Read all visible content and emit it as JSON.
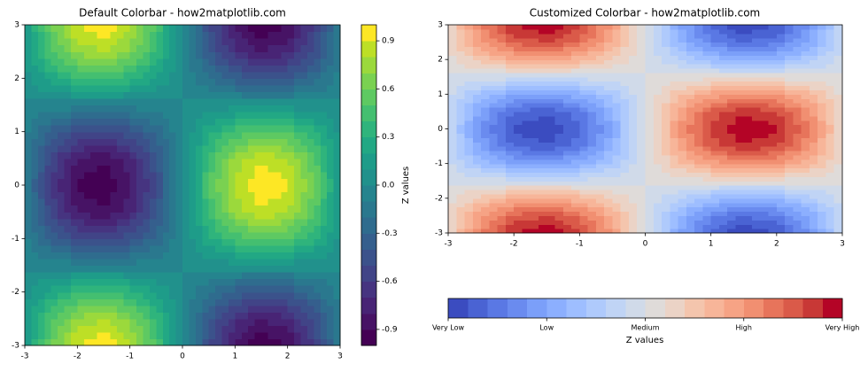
{
  "chart_data": [
    {
      "type": "contourf",
      "title": "Default Colorbar - how2matplotlib.com",
      "x": [
        -3,
        -2.5,
        -2,
        -1.5,
        -1,
        -0.5,
        0,
        0.5,
        1,
        1.5,
        2,
        2.5,
        3
      ],
      "y": [
        -3,
        -2.5,
        -2,
        -1.5,
        -1,
        -0.5,
        0,
        0.5,
        1,
        1.5,
        2,
        2.5,
        3
      ],
      "z": [
        [
          0.14,
          0.59,
          0.9,
          0.99,
          0.83,
          0.47,
          0,
          -0.47,
          -0.83,
          -0.99,
          -0.9,
          -0.59,
          -0.14
        ],
        [
          0.11,
          0.48,
          0.73,
          0.8,
          0.67,
          0.38,
          0,
          -0.38,
          -0.67,
          -0.8,
          -0.73,
          -0.48,
          -0.11
        ],
        [
          0.06,
          0.25,
          0.38,
          0.42,
          0.35,
          0.2,
          0,
          -0.2,
          -0.35,
          -0.42,
          -0.38,
          -0.25,
          -0.06
        ],
        [
          -0.01,
          -0.04,
          -0.06,
          -0.07,
          -0.06,
          -0.03,
          0,
          0.03,
          0.06,
          0.07,
          0.06,
          0.04,
          0.01
        ],
        [
          -0.08,
          -0.32,
          -0.49,
          -0.54,
          -0.45,
          -0.26,
          0,
          0.26,
          0.45,
          0.54,
          0.49,
          0.32,
          0.08
        ],
        [
          -0.12,
          -0.53,
          -0.8,
          -0.88,
          -0.74,
          -0.42,
          0,
          0.42,
          0.74,
          0.88,
          0.8,
          0.53,
          0.12
        ],
        [
          -0.14,
          -0.6,
          -0.91,
          -1,
          -0.84,
          -0.48,
          0,
          0.48,
          0.84,
          1,
          0.91,
          0.6,
          0.14
        ],
        [
          -0.12,
          -0.53,
          -0.8,
          -0.88,
          -0.74,
          -0.42,
          0,
          0.42,
          0.74,
          0.88,
          0.8,
          0.53,
          0.12
        ],
        [
          -0.08,
          -0.32,
          -0.49,
          -0.54,
          -0.45,
          -0.26,
          0,
          0.26,
          0.45,
          0.54,
          0.49,
          0.32,
          0.08
        ],
        [
          -0.01,
          -0.04,
          -0.06,
          -0.07,
          -0.06,
          -0.03,
          0,
          0.03,
          0.06,
          0.07,
          0.06,
          0.04,
          0.01
        ],
        [
          0.06,
          0.25,
          0.38,
          0.42,
          0.35,
          0.2,
          0,
          -0.2,
          -0.35,
          -0.42,
          -0.38,
          -0.25,
          -0.06
        ],
        [
          0.11,
          0.48,
          0.73,
          0.8,
          0.67,
          0.38,
          0,
          -0.38,
          -0.67,
          -0.8,
          -0.73,
          -0.48,
          -0.11
        ],
        [
          0.14,
          0.59,
          0.9,
          0.99,
          0.83,
          0.47,
          0,
          -0.47,
          -0.83,
          -0.99,
          -0.9,
          -0.59,
          -0.14
        ]
      ],
      "levels": [
        -1,
        -0.9,
        -0.8,
        -0.7,
        -0.6,
        -0.5,
        -0.4,
        -0.3,
        -0.2,
        -0.1,
        0,
        0.1,
        0.2,
        0.3,
        0.4,
        0.5,
        0.6,
        0.7,
        0.8,
        0.9,
        1
      ],
      "colors": [
        "#440154",
        "#471365",
        "#482475",
        "#463480",
        "#414487",
        "#3b528b",
        "#355f8d",
        "#2f6c8e",
        "#2a788e",
        "#25848e",
        "#21918c",
        "#1e9c89",
        "#22a884",
        "#2fb47c",
        "#44bf70",
        "#5ec962",
        "#7ad151",
        "#9bd93c",
        "#bddf26",
        "#fde725"
      ],
      "xlim": [
        -3,
        3
      ],
      "ylim": [
        -3,
        3
      ],
      "xticks": [
        -3,
        -2,
        -1,
        0,
        1,
        2,
        3
      ],
      "yticks": [
        -3,
        -2,
        -1,
        0,
        1,
        2,
        3
      ],
      "colorbar": {
        "label": "Z values",
        "orientation": "vertical",
        "ticks": [
          -0.9,
          -0.6,
          -0.3,
          {
            "value": 0,
            "label": "0.0"
          },
          0.3,
          0.6,
          0.9
        ]
      }
    },
    {
      "type": "contourf",
      "title": "Customized Colorbar - how2matplotlib.com",
      "x": [
        -3,
        -2.5,
        -2,
        -1.5,
        -1,
        -0.5,
        0,
        0.5,
        1,
        1.5,
        2,
        2.5,
        3
      ],
      "y": [
        -3,
        -2.5,
        -2,
        -1.5,
        -1,
        -0.5,
        0,
        0.5,
        1,
        1.5,
        2,
        2.5,
        3
      ],
      "z": [
        [
          0.14,
          0.59,
          0.9,
          0.99,
          0.83,
          0.47,
          0,
          -0.47,
          -0.83,
          -0.99,
          -0.9,
          -0.59,
          -0.14
        ],
        [
          0.11,
          0.48,
          0.73,
          0.8,
          0.67,
          0.38,
          0,
          -0.38,
          -0.67,
          -0.8,
          -0.73,
          -0.48,
          -0.11
        ],
        [
          0.06,
          0.25,
          0.38,
          0.42,
          0.35,
          0.2,
          0,
          -0.2,
          -0.35,
          -0.42,
          -0.38,
          -0.25,
          -0.06
        ],
        [
          -0.01,
          -0.04,
          -0.06,
          -0.07,
          -0.06,
          -0.03,
          0,
          0.03,
          0.06,
          0.07,
          0.06,
          0.04,
          0.01
        ],
        [
          -0.08,
          -0.32,
          -0.49,
          -0.54,
          -0.45,
          -0.26,
          0,
          0.26,
          0.45,
          0.54,
          0.49,
          0.32,
          0.08
        ],
        [
          -0.12,
          -0.53,
          -0.8,
          -0.88,
          -0.74,
          -0.42,
          0,
          0.42,
          0.74,
          0.88,
          0.8,
          0.53,
          0.12
        ],
        [
          -0.14,
          -0.6,
          -0.91,
          -1,
          -0.84,
          -0.48,
          0,
          0.48,
          0.84,
          1,
          0.91,
          0.6,
          0.14
        ],
        [
          -0.12,
          -0.53,
          -0.8,
          -0.88,
          -0.74,
          -0.42,
          0,
          0.42,
          0.74,
          0.88,
          0.8,
          0.53,
          0.12
        ],
        [
          -0.08,
          -0.32,
          -0.49,
          -0.54,
          -0.45,
          -0.26,
          0,
          0.26,
          0.45,
          0.54,
          0.49,
          0.32,
          0.08
        ],
        [
          -0.01,
          -0.04,
          -0.06,
          -0.07,
          -0.06,
          -0.03,
          0,
          0.03,
          0.06,
          0.07,
          0.06,
          0.04,
          0.01
        ],
        [
          0.06,
          0.25,
          0.38,
          0.42,
          0.35,
          0.2,
          0,
          -0.2,
          -0.35,
          -0.42,
          -0.38,
          -0.25,
          -0.06
        ],
        [
          0.11,
          0.48,
          0.73,
          0.8,
          0.67,
          0.38,
          0,
          -0.38,
          -0.67,
          -0.8,
          -0.73,
          -0.48,
          -0.11
        ],
        [
          0.14,
          0.59,
          0.9,
          0.99,
          0.83,
          0.47,
          0,
          -0.47,
          -0.83,
          -0.99,
          -0.9,
          -0.59,
          -0.14
        ]
      ],
      "levels": [
        -1,
        -0.9,
        -0.8,
        -0.7,
        -0.6,
        -0.5,
        -0.4,
        -0.3,
        -0.2,
        -0.1,
        0,
        0.1,
        0.2,
        0.3,
        0.4,
        0.5,
        0.6,
        0.7,
        0.8,
        0.9,
        1
      ],
      "colors": [
        "#3b4cc0",
        "#4a63d3",
        "#5a78e4",
        "#6a8bef",
        "#7b9ff9",
        "#8caffe",
        "#9ebeff",
        "#afcafc",
        "#c0d4f5",
        "#d0dae9",
        "#dfdbd9",
        "#ebd3c6",
        "#f4c5ad",
        "#f7b599",
        "#f6a385",
        "#f18f71",
        "#e7745b",
        "#da5a49",
        "#c83836",
        "#b40426"
      ],
      "xlim": [
        -3,
        3
      ],
      "ylim": [
        -3,
        3
      ],
      "xticks": [
        -3,
        -2,
        -1,
        0,
        1,
        2,
        3
      ],
      "yticks": [
        -3,
        -2,
        -1,
        0,
        1,
        2,
        3
      ],
      "colorbar": {
        "label": "Z values",
        "orientation": "horizontal",
        "ticks": [
          {
            "value": -1,
            "label": "Very Low"
          },
          {
            "value": -0.5,
            "label": "Low"
          },
          {
            "value": 0,
            "label": "Medium"
          },
          {
            "value": 0.5,
            "label": "High"
          },
          {
            "value": 1,
            "label": "Very High"
          }
        ]
      }
    }
  ]
}
